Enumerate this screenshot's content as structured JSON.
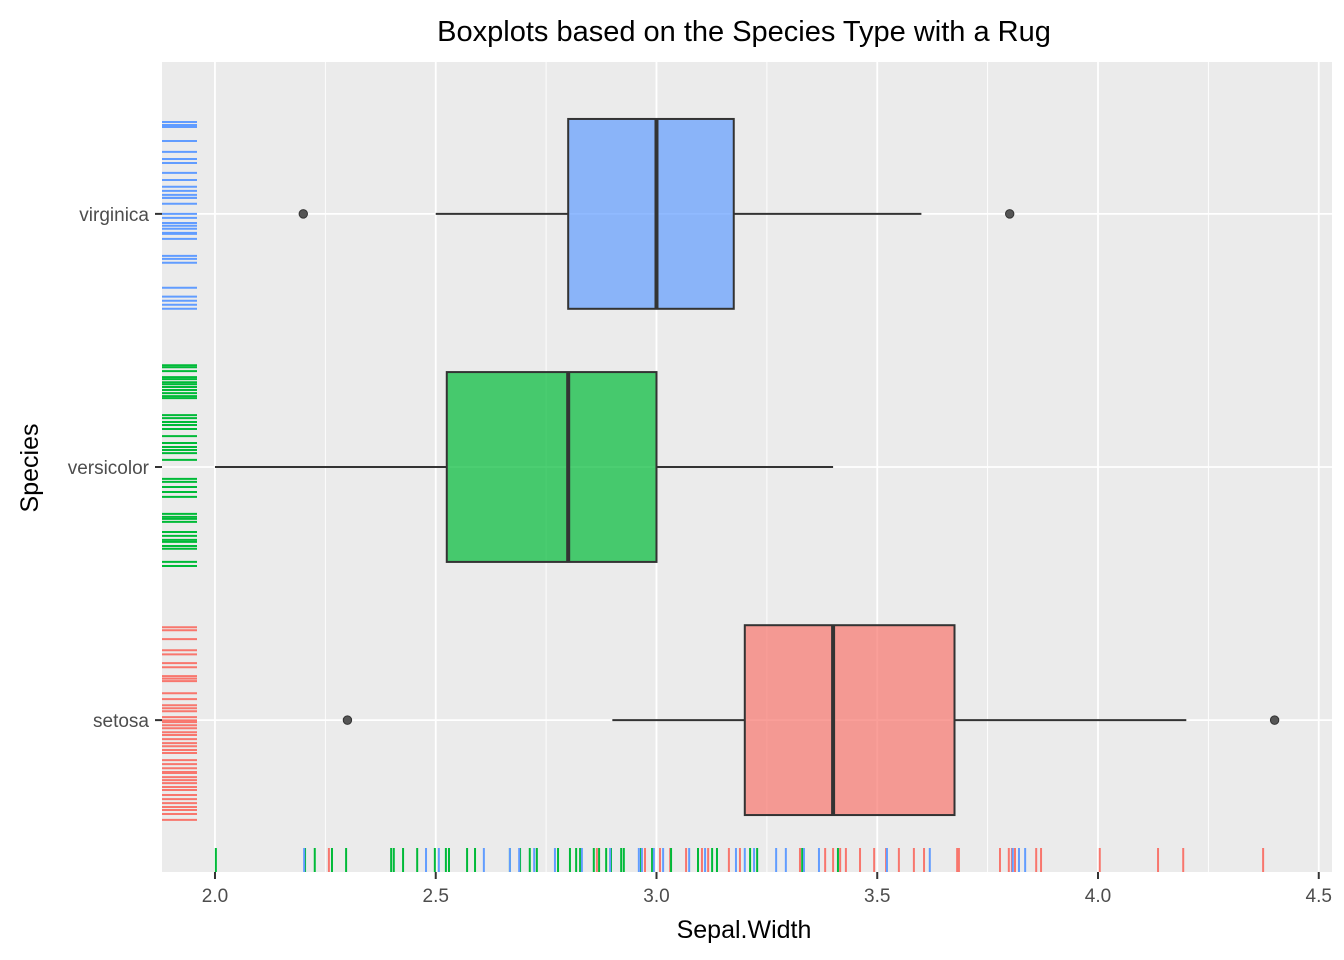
{
  "chart_data": {
    "type": "boxplot",
    "orientation": "horizontal",
    "title": "Boxplots based on the Species Type with a Rug",
    "xlabel": "Sepal.Width",
    "ylabel": "Species",
    "xlim": [
      1.88,
      4.53
    ],
    "x_ticks": [
      2.0,
      2.5,
      3.0,
      3.5,
      4.0,
      4.5
    ],
    "x_tick_labels": [
      "2.0",
      "2.5",
      "3.0",
      "3.5",
      "4.0",
      "4.5"
    ],
    "categories": [
      "setosa",
      "versicolor",
      "virginica"
    ],
    "grid": true,
    "legend": "none",
    "series": [
      {
        "name": "setosa",
        "color": "#F8766D",
        "whisker_low": 2.9,
        "q1": 3.2,
        "median": 3.4,
        "q3": 3.675,
        "whisker_high": 4.2,
        "outliers": [
          2.3,
          4.4
        ],
        "rug_x": [
          2.258,
          2.865,
          2.974,
          3.008,
          3.031,
          3.067,
          3.103,
          3.117,
          3.164,
          3.189,
          3.325,
          3.382,
          3.4,
          3.416,
          3.429,
          3.461,
          3.493,
          3.52,
          3.549,
          3.583,
          3.606,
          3.681,
          3.685,
          3.778,
          3.798,
          3.805,
          3.812,
          3.86,
          3.871,
          4.004,
          4.136,
          4.193,
          4.374
        ],
        "rug_y_jitter": [
          0.367,
          0.355,
          0.32,
          0.276,
          0.26,
          0.225,
          0.209,
          0.174,
          0.164,
          0.154,
          0.106,
          0.083,
          0.059,
          0.047,
          0.035,
          0.012,
          -0.001,
          -0.008,
          -0.02,
          -0.032,
          -0.048,
          -0.059,
          -0.075,
          -0.091,
          -0.103,
          -0.118,
          -0.13,
          -0.158,
          -0.174,
          -0.19,
          -0.205,
          -0.209,
          -0.225,
          -0.237,
          -0.249,
          -0.264,
          -0.276,
          -0.296,
          -0.312,
          -0.328,
          -0.343,
          -0.355,
          -0.371,
          -0.394
        ]
      },
      {
        "name": "versicolor",
        "color": "#00BA38",
        "whisker_low": 2.0,
        "q1": 2.525,
        "median": 2.8,
        "q3": 3.0,
        "whisker_high": 3.4,
        "outliers": [],
        "rug_x": [
          2.002,
          2.204,
          2.226,
          2.265,
          2.297,
          2.399,
          2.405,
          2.426,
          2.458,
          2.498,
          2.523,
          2.53,
          2.571,
          2.589,
          2.668,
          2.691,
          2.713,
          2.729,
          2.777,
          2.804,
          2.818,
          2.827,
          2.858,
          2.87,
          2.886,
          2.897,
          2.92,
          2.926,
          2.965,
          2.99,
          3.033,
          3.094,
          3.126,
          3.137,
          3.212,
          3.228,
          3.33,
          3.411
        ],
        "rug_y_jitter": [
          0.402,
          0.394,
          0.379,
          0.355,
          0.347,
          0.335,
          0.327,
          0.316,
          0.304,
          0.292,
          0.28,
          0.272,
          0.205,
          0.193,
          0.178,
          0.166,
          0.15,
          0.122,
          0.095,
          0.079,
          0.067,
          0.055,
          0.028,
          -0.047,
          -0.059,
          -0.079,
          -0.099,
          -0.118,
          -0.185,
          -0.197,
          -0.205,
          -0.217,
          -0.257,
          -0.272,
          -0.288,
          -0.296,
          -0.312,
          -0.323,
          -0.375,
          -0.391
        ]
      },
      {
        "name": "virginica",
        "color": "#619CFF",
        "whisker_low": 2.5,
        "q1": 2.8,
        "median": 3.0,
        "q3": 3.175,
        "whisker_high": 3.6,
        "outliers": [
          2.2,
          3.8
        ],
        "rug_x": [
          2.202,
          2.478,
          2.507,
          2.609,
          2.668,
          2.689,
          2.723,
          2.77,
          2.831,
          2.895,
          2.96,
          2.967,
          2.994,
          3.015,
          3.074,
          3.11,
          3.18,
          3.2,
          3.221,
          3.271,
          3.293,
          3.334,
          3.368,
          3.522,
          3.619,
          3.807,
          3.821,
          3.835
        ],
        "rug_y_jitter": [
          0.363,
          0.351,
          0.343,
          0.288,
          0.245,
          0.217,
          0.201,
          0.162,
          0.134,
          0.107,
          0.091,
          0.075,
          0.063,
          0.063,
          0.04,
          0.0,
          -0.016,
          -0.036,
          -0.047,
          -0.059,
          -0.075,
          -0.079,
          -0.099,
          -0.166,
          -0.178,
          -0.193,
          -0.292,
          -0.327,
          -0.343,
          -0.359,
          -0.375
        ]
      }
    ]
  }
}
